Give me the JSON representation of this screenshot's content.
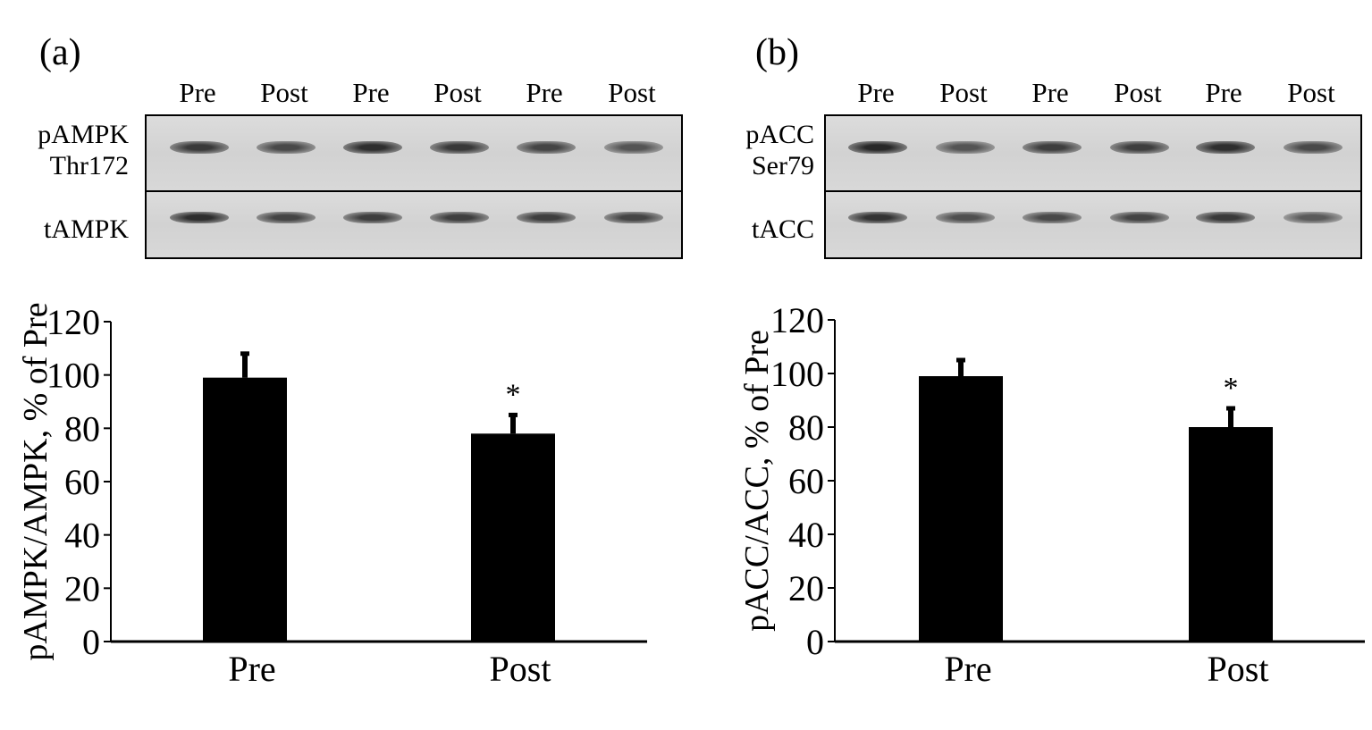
{
  "panels": [
    {
      "label": "(a)",
      "lanes": [
        "Pre",
        "Post",
        "Pre",
        "Post",
        "Pre",
        "Post"
      ],
      "blot_rows": [
        {
          "label_line1": "pAMPK",
          "label_line2": "Thr172",
          "band_intensity": [
            0.85,
            0.7,
            0.95,
            0.85,
            0.75,
            0.6
          ]
        },
        {
          "label_line1": "tAMPK",
          "label_line2": "",
          "band_intensity": [
            0.95,
            0.75,
            0.8,
            0.8,
            0.8,
            0.75
          ]
        }
      ],
      "chart_data": {
        "type": "bar",
        "categories": [
          "Pre",
          "Post"
        ],
        "values": [
          99,
          78
        ],
        "errors": [
          9,
          7
        ],
        "significance": [
          "",
          "*"
        ],
        "ylabel": "pAMPK/AMPK, % of Pre",
        "ylim": [
          0,
          120
        ],
        "yticks": [
          0,
          20,
          40,
          60,
          80,
          100,
          120
        ],
        "bar_color": "#000000"
      }
    },
    {
      "label": "(b)",
      "lanes": [
        "Pre",
        "Post",
        "Pre",
        "Post",
        "Pre",
        "Post"
      ],
      "blot_rows": [
        {
          "label_line1": "pACC",
          "label_line2": "Ser79",
          "band_intensity": [
            1.0,
            0.6,
            0.8,
            0.8,
            0.95,
            0.7
          ]
        },
        {
          "label_line1": "tACC",
          "label_line2": "",
          "band_intensity": [
            0.9,
            0.65,
            0.7,
            0.75,
            0.85,
            0.55
          ]
        }
      ],
      "chart_data": {
        "type": "bar",
        "categories": [
          "Pre",
          "Post"
        ],
        "values": [
          99,
          80
        ],
        "errors": [
          6,
          7
        ],
        "significance": [
          "",
          "*"
        ],
        "ylabel": "pACC/ACC, % of Pre",
        "ylim": [
          0,
          120
        ],
        "yticks": [
          0,
          20,
          40,
          60,
          80,
          100,
          120
        ],
        "bar_color": "#000000"
      }
    }
  ]
}
